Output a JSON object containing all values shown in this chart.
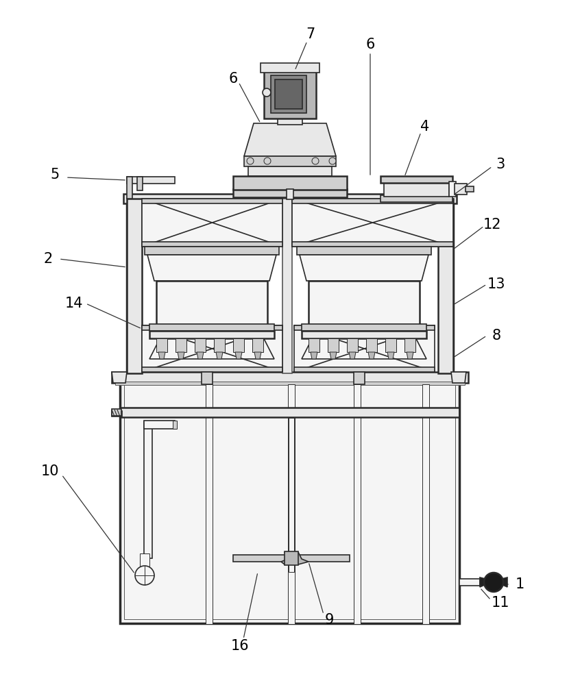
{
  "bg_color": "#ffffff",
  "dc": "#2a2a2a",
  "mc": "#555555",
  "lc": "#888888",
  "fl": "#f5f5f5",
  "fm": "#e8e8e8",
  "fd": "#d0d0d0",
  "fdk": "#b8b8b8",
  "label_fontsize": 15,
  "figsize": [
    8.46,
    10.0
  ],
  "dpi": 100
}
